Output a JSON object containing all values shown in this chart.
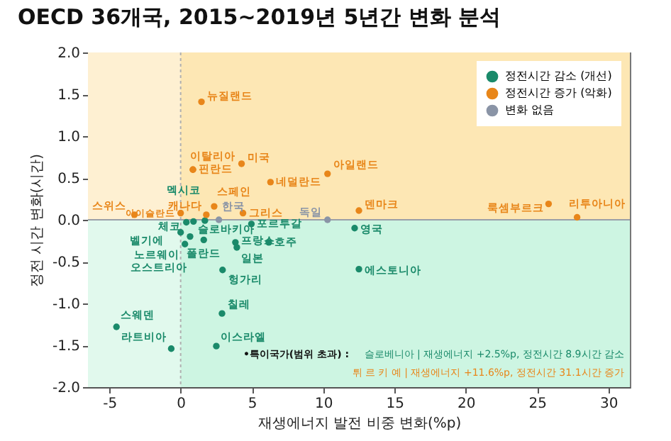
{
  "chart_data": {
    "type": "scatter",
    "title": "OECD 36개국, 2015~2019년 5년간 변화 분석",
    "xlabel": "재생에너지 발전 비중 변화(%p)",
    "ylabel": "정전 시간 변화(시간)",
    "xlim": [
      -6.5,
      31.5
    ],
    "ylim": [
      -2,
      2
    ],
    "xticks": [
      -5,
      0,
      5,
      10,
      15,
      20,
      25,
      30
    ],
    "yticks": [
      {
        "value": -2,
        "label": "-2.0"
      },
      {
        "value": -1.5,
        "label": "-1.5"
      },
      {
        "value": -1,
        "label": "-1.0"
      },
      {
        "value": -0.5,
        "label": "-0.5"
      },
      {
        "value": 0,
        "label": "0.0"
      },
      {
        "value": 0.5,
        "label": "0.5"
      },
      {
        "value": 1,
        "label": "1.0"
      },
      {
        "value": 1.5,
        "label": "1.5"
      },
      {
        "value": 2,
        "label": "2.0"
      }
    ],
    "marker": "circle",
    "grid": false,
    "legend": "top right",
    "bands": [
      {
        "axis": "y",
        "from": 0,
        "to": 2,
        "color": "#fde7b4"
      },
      {
        "axis": "y",
        "from": -2,
        "to": 0,
        "color": "#cdf5e2"
      },
      {
        "axis": "x",
        "from": -6.5,
        "to": 0,
        "color": "#ffffff"
      }
    ],
    "ref_lines": [
      {
        "axis": "x",
        "value": 0,
        "color": "#b0b0b0",
        "line_style": "dotted"
      },
      {
        "axis": "y",
        "value": 0,
        "color": "#9aa0a8",
        "line_style": "solid"
      }
    ],
    "series": [
      {
        "name": "정전시간 감소 (개선)",
        "color": "#1a8a6a",
        "x": [
          0.4,
          0.9,
          1.7,
          0,
          0.3,
          0.66,
          1.62,
          3.84,
          3.94,
          4.96,
          6.18,
          2.94,
          2.9,
          -4.5,
          -0.66,
          2.5,
          12.2,
          12.5
        ],
        "values": [
          -0.03,
          -0.02,
          -0.01,
          -0.15,
          -0.29,
          -0.2,
          -0.24,
          -0.27,
          -0.33,
          -0.05,
          -0.27,
          -0.6,
          -1.12,
          -1.28,
          -1.54,
          -1.51,
          -0.1,
          -0.59
        ],
        "value_labels": [
          "체코",
          "슬로바키아",
          "멕시코",
          "벨기에",
          "노르웨이",
          "오스트리아",
          "폴란드",
          "프랑스",
          "일본",
          "포르투갈",
          "호주",
          "헝가리",
          "칠레",
          "스웨덴",
          "라트비아",
          "이스라엘",
          "영국",
          "에스토니아"
        ]
      },
      {
        "name": "정전시간 증가 (악화)",
        "color": "#e8861a",
        "x": [
          1.46,
          0.86,
          0.86,
          4.27,
          6.3,
          10.3,
          12.5,
          25.8,
          27.8,
          -3.24,
          0,
          2.35,
          1.8,
          4.37
        ],
        "values": [
          1.41,
          0.6,
          0.6,
          0.67,
          0.45,
          0.55,
          0.11,
          0.19,
          0.03,
          0.06,
          0.08,
          0.16,
          0.06,
          0.08
        ],
        "value_labels": [
          "뉴질랜드",
          "이탈리아",
          "핀란드",
          "미국",
          "네덜란드",
          "아일랜드",
          "덴마크",
          "룩셈부르크",
          "리투아니아",
          "스위스",
          "아이슬란드",
          "스페인",
          "캐나다",
          "그리스"
        ]
      },
      {
        "name": "변화 없음",
        "color": "#8a94a6",
        "x": [
          10.3,
          2.68
        ],
        "values": [
          0,
          0
        ],
        "value_labels": [
          "독일",
          "한국"
        ]
      }
    ],
    "annotations": [
      "•특이국가(범위 초과) :",
      "슬로베니아 | 재생에너지 +2.5%p, 정전시간 8.9시간 감소",
      "튀 르 키 예 | 재생에너지 +11.6%p, 정전시간 31.1시간 증가"
    ]
  }
}
